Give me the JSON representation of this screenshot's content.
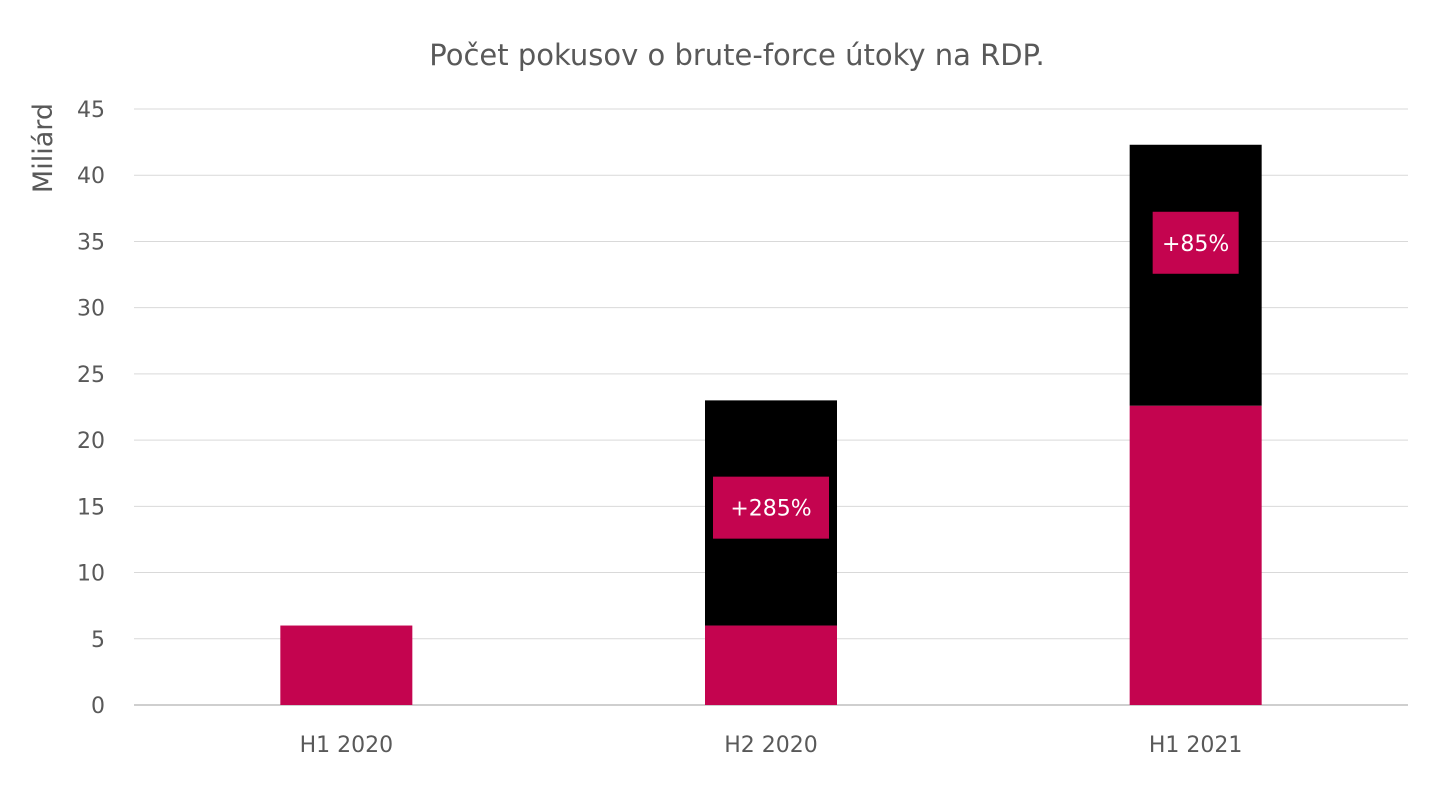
{
  "chart_data": {
    "type": "bar",
    "stacked": true,
    "title": "Počet pokusov o brute-force útoky na RDP.",
    "ylabel": "Miliárd",
    "xlabel": "",
    "categories": [
      "H1 2020",
      "H2 2020",
      "H1 2021"
    ],
    "ylim": [
      0,
      45
    ],
    "yticks": [
      0,
      5,
      10,
      15,
      20,
      25,
      30,
      35,
      40,
      45
    ],
    "grid": true,
    "legend": "none",
    "series": [
      {
        "values": [
          6.0,
          6.0,
          22.6
        ],
        "color": "#c4044f"
      },
      {
        "values": [
          0,
          17.0,
          19.7
        ],
        "color": "#000000"
      }
    ],
    "annotations": [
      {
        "category": "H2 2020",
        "text": "+285%",
        "y": 14.9
      },
      {
        "category": "H1 2021",
        "text": "+85%",
        "y": 34.9
      }
    ],
    "colors": {
      "grid": "#d9d9d9",
      "axis": "#bfbfbf",
      "text": "#595959",
      "label_box": "#c4044f"
    }
  }
}
